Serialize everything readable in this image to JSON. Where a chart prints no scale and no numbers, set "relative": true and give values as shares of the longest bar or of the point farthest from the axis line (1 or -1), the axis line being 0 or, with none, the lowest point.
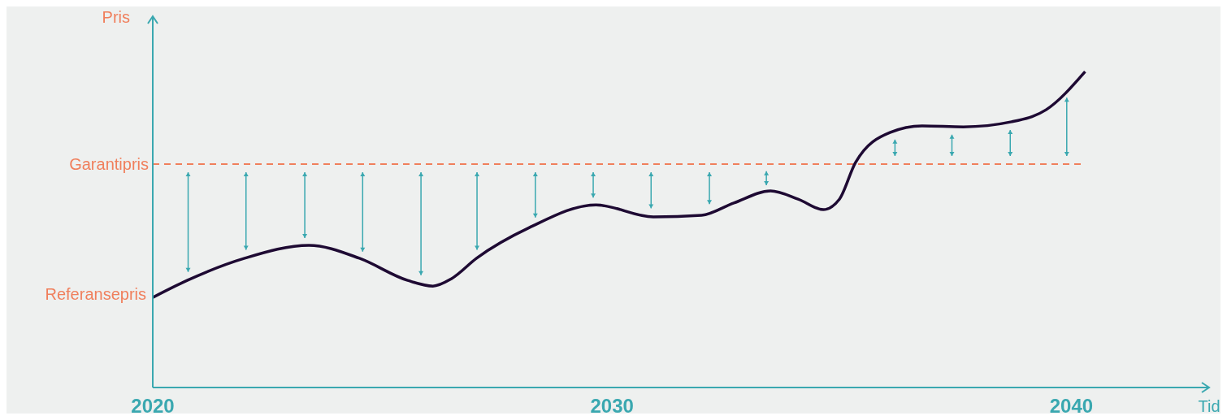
{
  "chart_data": {
    "type": "line",
    "relative": true,
    "ylabel": "Pris",
    "xlabel": "Tid",
    "x": [
      2020,
      2020.75,
      2022.0,
      2023.4,
      2024.5,
      2025.55,
      2026.1,
      2026.5,
      2027.05,
      2028.2,
      2029.65,
      2030.9,
      2031.95,
      2032.65,
      2033.45,
      2034.05,
      2034.6,
      2034.95,
      2035.3,
      2036.05,
      2036.75,
      2037.65,
      2038.7,
      2039.45,
      2040.3
    ],
    "series": [
      {
        "color": "#1e0a33",
        "values": [
          0.285,
          0.339,
          0.409,
          0.45,
          0.409,
          0.339,
          0.321,
          0.344,
          0.409,
          0.506,
          0.578,
          0.54,
          0.545,
          0.584,
          0.622,
          0.596,
          0.563,
          0.596,
          0.712,
          0.807,
          0.828,
          0.825,
          0.841,
          0.879,
          1.0
        ]
      }
    ],
    "xlim": [
      2020,
      2043
    ],
    "xticks": [
      2020,
      2030,
      2040
    ],
    "ref_lines": [
      {
        "axis": "y",
        "value": 0.707,
        "label": "Garantipris",
        "color": "#f07f5c",
        "line_style": "dashed"
      }
    ],
    "annotations": [
      {
        "text": "Referansepris",
        "x": 2020,
        "y": 0.285
      }
    ],
    "marker": "none",
    "grid": false
  }
}
